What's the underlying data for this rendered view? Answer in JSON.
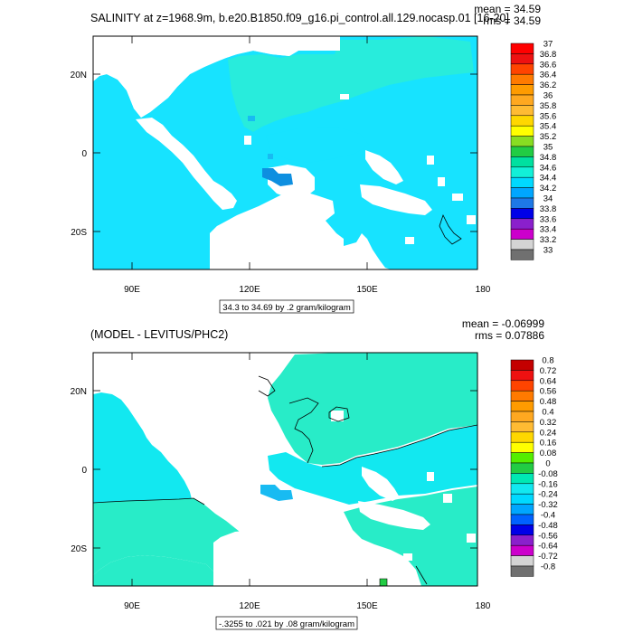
{
  "panel_top": {
    "title": "SALINITY at z=1968.9m, b.e20.B1850.f09_g16.pi_control.all.129.nocasp.01 [16-20]",
    "mean_label": "mean = 34.59",
    "rms_label": "rms = 34.59",
    "info_label": "34.3 to 34.69 by .2 gram/kilogram",
    "lon_ticks": [
      "90E",
      "120E",
      "150E",
      "180"
    ],
    "lat_ticks": [
      "20N",
      "0",
      "20S"
    ],
    "legend_labels": [
      "37",
      "36.8",
      "36.6",
      "36.4",
      "36.2",
      "36",
      "35.8",
      "35.6",
      "35.4",
      "35.2",
      "35",
      "34.8",
      "34.6",
      "34.4",
      "34.2",
      "34",
      "33.8",
      "33.6",
      "33.4",
      "33.2",
      "33"
    ],
    "legend_colors": [
      "#ff0000",
      "#ee1111",
      "#ff4400",
      "#ff7a00",
      "#ff9b00",
      "#ffa820",
      "#ffbb33",
      "#ffd700",
      "#ffff00",
      "#88dd22",
      "#22cc44",
      "#00e0a0",
      "#12f0d8",
      "#00d9ff",
      "#00a6ff",
      "#1e78e6",
      "#0000e8",
      "#8a20cc",
      "#cc00cc",
      "#d4d4d4",
      "#707070"
    ],
    "fill_colors": {
      "main": "#17e3ff",
      "lighter": "#28ecdc",
      "blue": "#18bbf2",
      "dark": "#0e8fe0"
    }
  },
  "panel_bottom": {
    "title": "(MODEL - LEVITUS/PHC2)",
    "mean_label": "mean = -0.06999",
    "rms_label": "rms = 0.07886",
    "info_label": "-.3255 to .021 by .08 gram/kilogram",
    "lon_ticks": [
      "90E",
      "120E",
      "150E",
      "180"
    ],
    "lat_ticks": [
      "20N",
      "0",
      "20S"
    ],
    "legend_labels": [
      "0.8",
      "0.72",
      "0.64",
      "0.56",
      "0.48",
      "0.4",
      "0.32",
      "0.24",
      "0.16",
      "0.08",
      "0",
      "-0.08",
      "-0.16",
      "-0.24",
      "-0.32",
      "-0.4",
      "-0.48",
      "-0.56",
      "-0.64",
      "-0.72",
      "-0.8"
    ],
    "legend_colors": [
      "#c40000",
      "#ee1111",
      "#ff4400",
      "#ff7a00",
      "#ff9b00",
      "#ffa820",
      "#ffbb33",
      "#ffd700",
      "#ffff00",
      "#55ee00",
      "#22cc44",
      "#00e8b4",
      "#12e8f0",
      "#00d9ff",
      "#00a6ff",
      "#0062ff",
      "#0000e8",
      "#8a20cc",
      "#cc00cc",
      "#d4d4d4",
      "#707070"
    ],
    "fill_colors": {
      "main": "#28ecc8",
      "cyan": "#12e8f0",
      "blue": "#18bbf2"
    }
  }
}
